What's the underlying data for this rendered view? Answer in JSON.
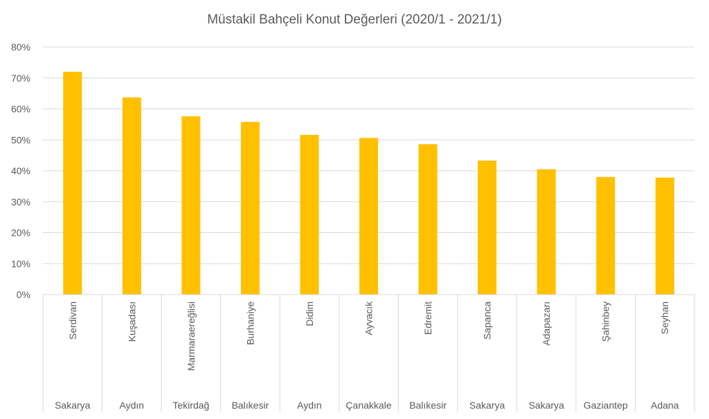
{
  "chart_data": {
    "type": "bar",
    "title": "Müstakil Bahçeli Konut Değerleri (2020/1 - 2021/1)",
    "xlabel": "",
    "ylabel": "",
    "categories": [
      "Serdivan",
      "Kuşadası",
      "Marmaraereğlisi",
      "Burhaniye",
      "Didim",
      "Ayvacık",
      "Edremit",
      "Sapanca",
      "Adapazarı",
      "Şahinbey",
      "Seyhan"
    ],
    "groups": [
      "Sakarya",
      "Aydın",
      "Tekirdağ",
      "Balıkesir",
      "Aydın",
      "Çanakkale",
      "Balıkesir",
      "Sakarya",
      "Sakarya",
      "Gaziantep",
      "Adana"
    ],
    "values": [
      72,
      63.7,
      57.6,
      55.8,
      51.6,
      50.6,
      48.6,
      43.3,
      40.5,
      38.0,
      37.8
    ],
    "value_unit": "%",
    "ylim": [
      0,
      80
    ],
    "yticks": [
      "0%",
      "10%",
      "20%",
      "30%",
      "40%",
      "50%",
      "60%",
      "70%",
      "80%"
    ],
    "grid": true,
    "legend": "none",
    "colors": {
      "bar": "#FFC000",
      "grid": "#D9D9D9",
      "text": "#595959"
    }
  }
}
